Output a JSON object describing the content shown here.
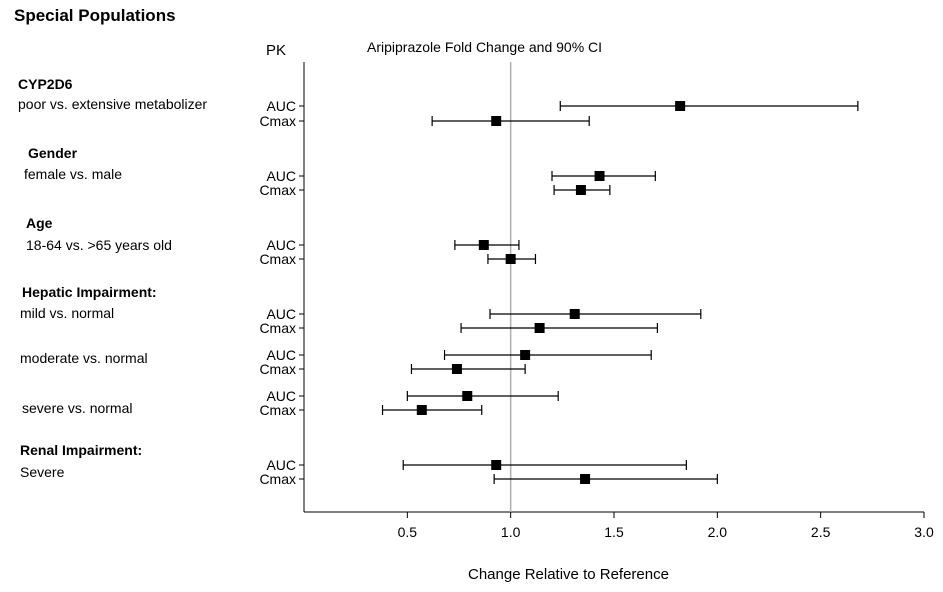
{
  "title": "Special Populations",
  "pk_header": "PK",
  "groups": [
    {
      "label": "CYP2D6",
      "sub": "poor vs. extensive metabolizer"
    },
    {
      "label": "Gender",
      "sub": "female vs. male"
    },
    {
      "label": "Age",
      "sub": "18-64 vs. >65 years old"
    },
    {
      "label": "Hepatic Impairment:",
      "sub": "mild vs. normal"
    },
    {
      "label": "",
      "sub": "moderate vs. normal"
    },
    {
      "label": "",
      "sub": "severe vs. normal"
    },
    {
      "label": "Renal Impairment:",
      "sub": "Severe"
    }
  ],
  "chart_data": {
    "type": "forest",
    "title": "Aripiprazole Fold Change and 90% CI",
    "xlabel": "Change Relative to Reference",
    "xlim": [
      0.0,
      3.0
    ],
    "xticks": [
      "0.5",
      "1.0",
      "1.5",
      "2.0",
      "2.5",
      "3.0"
    ],
    "reference_line": 1.0,
    "rows": [
      {
        "group": "CYP2D6",
        "metric": "AUC",
        "point": 1.82,
        "low": 1.24,
        "high": 2.68
      },
      {
        "group": "CYP2D6",
        "metric": "Cmax",
        "point": 0.93,
        "low": 0.62,
        "high": 1.38
      },
      {
        "group": "Gender",
        "metric": "AUC",
        "point": 1.43,
        "low": 1.2,
        "high": 1.7
      },
      {
        "group": "Gender",
        "metric": "Cmax",
        "point": 1.34,
        "low": 1.21,
        "high": 1.48
      },
      {
        "group": "Age",
        "metric": "AUC",
        "point": 0.87,
        "low": 0.73,
        "high": 1.04
      },
      {
        "group": "Age",
        "metric": "Cmax",
        "point": 1.0,
        "low": 0.89,
        "high": 1.12
      },
      {
        "group": "Hepatic mild",
        "metric": "AUC",
        "point": 1.31,
        "low": 0.9,
        "high": 1.92
      },
      {
        "group": "Hepatic mild",
        "metric": "Cmax",
        "point": 1.14,
        "low": 0.76,
        "high": 1.71
      },
      {
        "group": "Hepatic moderate",
        "metric": "AUC",
        "point": 1.07,
        "low": 0.68,
        "high": 1.68
      },
      {
        "group": "Hepatic moderate",
        "metric": "Cmax",
        "point": 0.74,
        "low": 0.52,
        "high": 1.07
      },
      {
        "group": "Hepatic severe",
        "metric": "AUC",
        "point": 0.79,
        "low": 0.5,
        "high": 1.23
      },
      {
        "group": "Hepatic severe",
        "metric": "Cmax",
        "point": 0.57,
        "low": 0.38,
        "high": 0.86
      },
      {
        "group": "Renal severe",
        "metric": "AUC",
        "point": 0.93,
        "low": 0.48,
        "high": 1.85
      },
      {
        "group": "Renal severe",
        "metric": "Cmax",
        "point": 1.36,
        "low": 0.92,
        "high": 2.0
      }
    ]
  }
}
